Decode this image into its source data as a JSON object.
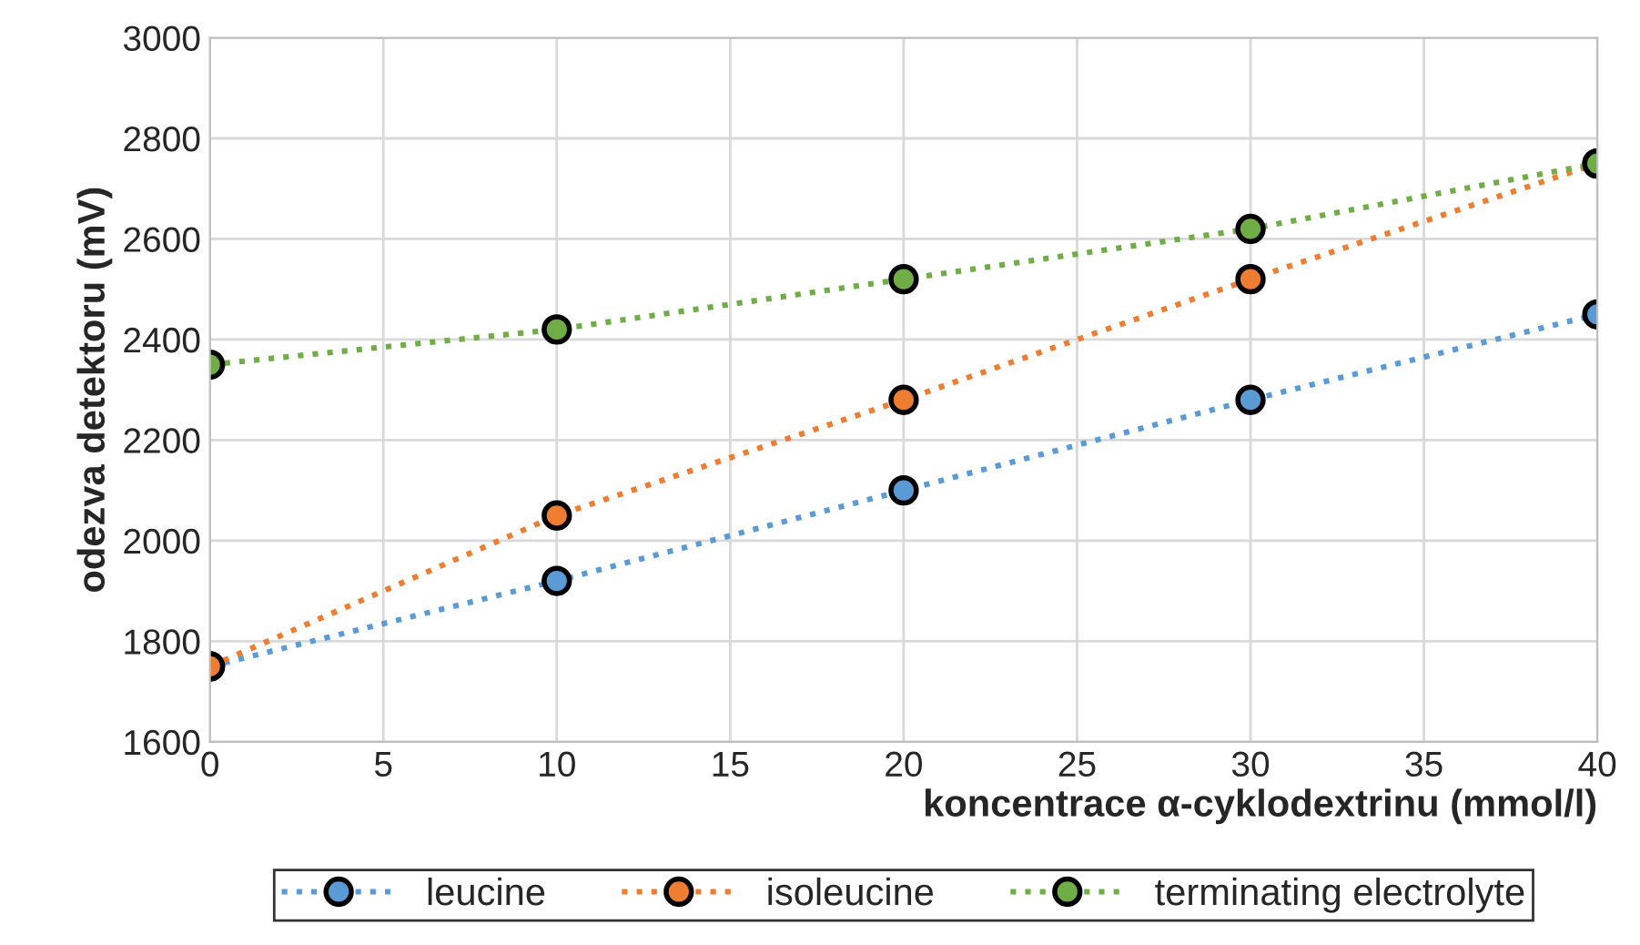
{
  "chart_data": {
    "type": "line",
    "xlabel": "koncentrace α-cyklodextrinu (mmol/l)",
    "ylabel": "odezva detektoru (mV)",
    "x": [
      0,
      10,
      20,
      30,
      40
    ],
    "series": [
      {
        "name": "leucine",
        "color": "#5b9bd5",
        "values": [
          1750,
          1920,
          2100,
          2280,
          2450
        ]
      },
      {
        "name": "isoleucine",
        "color": "#ed7d31",
        "values": [
          1750,
          2050,
          2280,
          2520,
          2750
        ]
      },
      {
        "name": "terminating electrolyte",
        "color": "#70ad47",
        "values": [
          2350,
          2420,
          2520,
          2620,
          2750
        ]
      }
    ],
    "xlim": [
      0,
      40
    ],
    "xticks": [
      0,
      5,
      10,
      15,
      20,
      25,
      30,
      35,
      40
    ],
    "ylim": [
      1600,
      3000
    ],
    "yticks": [
      1600,
      1800,
      2000,
      2200,
      2400,
      2600,
      2800,
      3000
    ],
    "grid": true,
    "legend": "bottom",
    "marker": "circle",
    "line_style": "dotted"
  }
}
